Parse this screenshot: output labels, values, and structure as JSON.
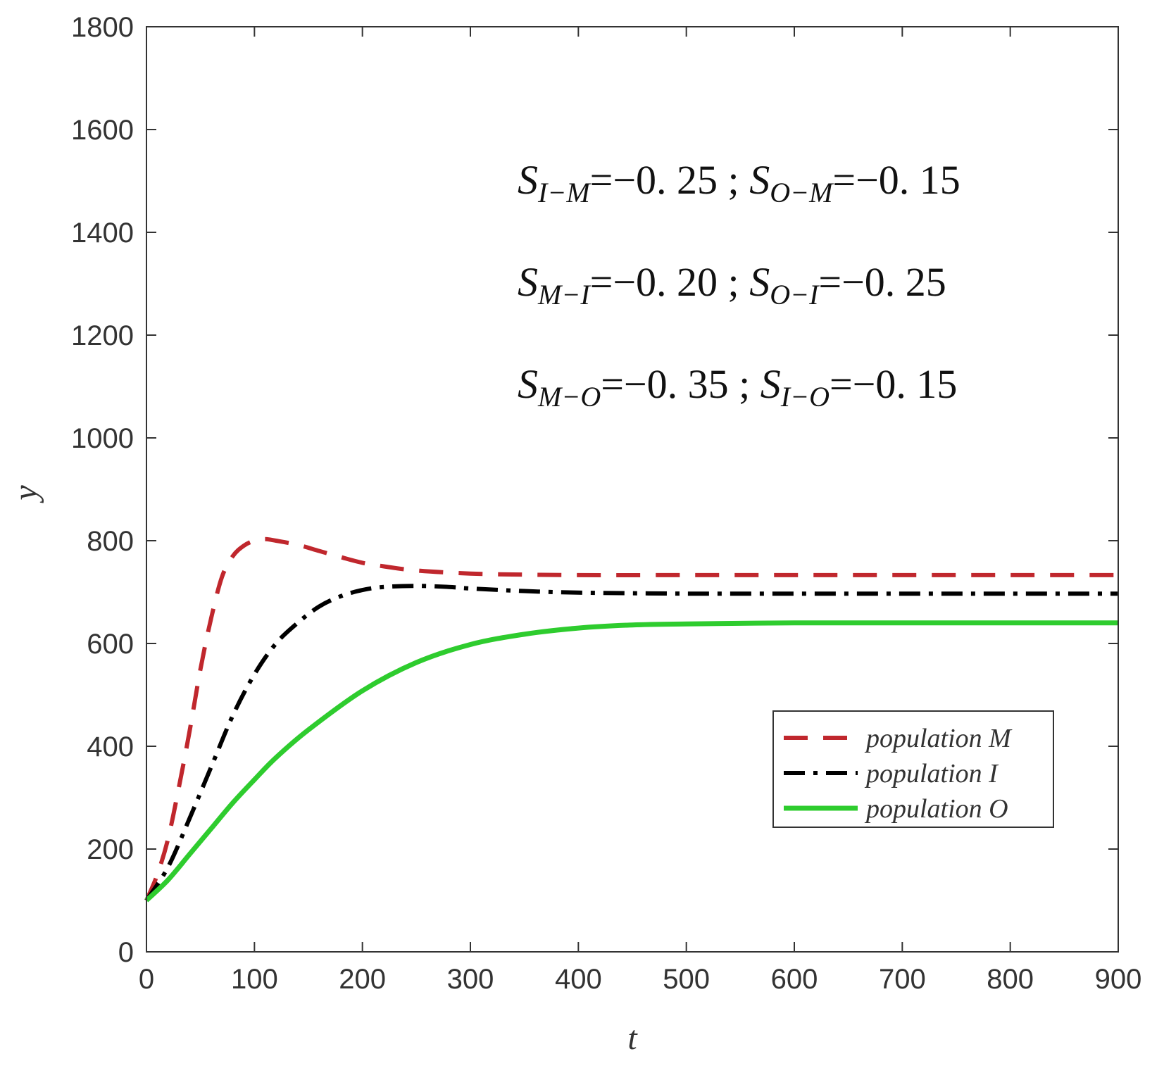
{
  "chart_data": {
    "type": "line",
    "xlabel": "t",
    "ylabel": "y",
    "xlim": [
      0,
      900
    ],
    "ylim": [
      0,
      1800
    ],
    "x_ticks": [
      0,
      100,
      200,
      300,
      400,
      500,
      600,
      700,
      800,
      900
    ],
    "y_ticks": [
      0,
      200,
      400,
      600,
      800,
      1000,
      1200,
      1400,
      1600,
      1800
    ],
    "x_tick_labels": [
      "0",
      "100",
      "200",
      "300",
      "400",
      "500",
      "600",
      "700",
      "800",
      "900"
    ],
    "y_tick_labels": [
      "0",
      "200",
      "400",
      "600",
      "800",
      "1000",
      "1200",
      "1400",
      "1600",
      "1800"
    ],
    "grid": false,
    "legend_position": "lower-right",
    "annotations": [
      {
        "s1": "S",
        "sub1": "I−M",
        "eq1": "=−0. 25 ; ",
        "s2": "S",
        "sub2": "O−M",
        "eq2": "=−0. 15"
      },
      {
        "s1": "S",
        "sub1": "M−I",
        "eq1": "=−0. 20 ; ",
        "s2": "S",
        "sub2": "O−I",
        "eq2": "=−0. 25"
      },
      {
        "s1": "S",
        "sub1": "M−O",
        "eq1": "=−0. 35 ; ",
        "s2": "S",
        "sub2": "I−O",
        "eq2": "=−0. 15"
      }
    ],
    "series": [
      {
        "name": "population M",
        "color": "#c0272d",
        "style": "dashed",
        "x": [
          0,
          10,
          20,
          30,
          40,
          50,
          60,
          70,
          80,
          90,
          100,
          110,
          120,
          140,
          160,
          180,
          200,
          220,
          250,
          300,
          350,
          400,
          500,
          600,
          700,
          800,
          900
        ],
        "y": [
          100,
          150,
          220,
          320,
          430,
          550,
          650,
          730,
          770,
          790,
          800,
          803,
          800,
          792,
          780,
          768,
          757,
          750,
          742,
          736,
          734,
          733,
          733,
          733,
          733,
          733,
          733
        ]
      },
      {
        "name": "population I",
        "color": "#000000",
        "style": "dashdot",
        "x": [
          0,
          20,
          40,
          60,
          80,
          100,
          120,
          140,
          160,
          180,
          200,
          220,
          250,
          280,
          300,
          350,
          400,
          500,
          600,
          700,
          800,
          900
        ],
        "y": [
          100,
          165,
          260,
          360,
          460,
          540,
          600,
          640,
          672,
          692,
          704,
          710,
          712,
          710,
          707,
          702,
          699,
          697,
          697,
          697,
          697,
          697
        ]
      },
      {
        "name": "population O",
        "color": "#2ecc2e",
        "style": "solid",
        "x": [
          0,
          20,
          40,
          60,
          80,
          100,
          120,
          150,
          200,
          250,
          300,
          350,
          400,
          450,
          500,
          600,
          700,
          800,
          900
        ],
        "y": [
          100,
          140,
          190,
          240,
          290,
          335,
          378,
          432,
          508,
          563,
          598,
          618,
          630,
          636,
          638,
          640,
          640,
          640,
          640
        ]
      }
    ]
  }
}
